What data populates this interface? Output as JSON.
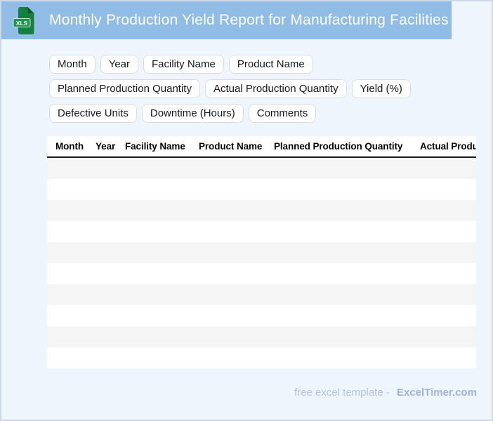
{
  "header": {
    "title": "Monthly Production Yield Report for Manufacturing Facilities",
    "icon_label": "XLS",
    "accent_color": "#90bce6",
    "icon_green": "#148040"
  },
  "chips": [
    "Month",
    "Year",
    "Facility Name",
    "Product Name",
    "Planned Production Quantity",
    "Actual Production Quantity",
    "Yield (%)",
    "Defective Units",
    "Downtime (Hours)",
    "Comments"
  ],
  "table": {
    "columns": [
      "Month",
      "Year",
      "Facility Name",
      "Product Name",
      "Planned Production Quantity",
      "Actual Production Quantity"
    ],
    "empty_row_count": 10,
    "stripe_color": "#f5f5f6"
  },
  "footer": {
    "prefix": "free excel template -",
    "brand": "ExcelTimer.com"
  }
}
